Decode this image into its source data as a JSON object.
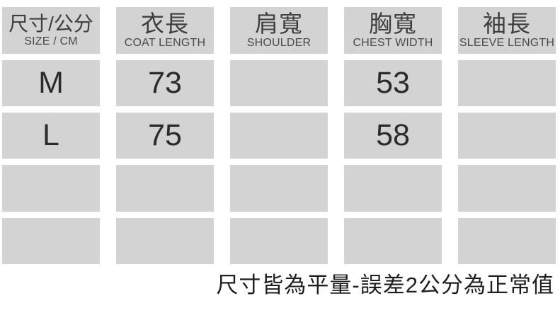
{
  "chart_data": {
    "type": "table",
    "columns": [
      {
        "zh": "尺寸/公分",
        "en": "SIZE / CM"
      },
      {
        "zh": "衣長",
        "en": "COAT LENGTH"
      },
      {
        "zh": "肩寬",
        "en": "SHOULDER"
      },
      {
        "zh": "胸寬",
        "en": "CHEST WIDTH"
      },
      {
        "zh": "袖長",
        "en": "SLEEVE LENGTH"
      }
    ],
    "rows": [
      [
        "M",
        "73",
        "",
        "53",
        ""
      ],
      [
        "L",
        "75",
        "",
        "58",
        ""
      ],
      [
        "",
        "",
        "",
        "",
        ""
      ],
      [
        "",
        "",
        "",
        "",
        ""
      ]
    ],
    "footnote": "尺寸皆為平量-誤差2公分為正常值"
  },
  "colors": {
    "cell_bg": "#d3d3d3",
    "header_text": "#3f3f3f",
    "subheader_text": "#4a4a4a",
    "value_text": "#2b2b2b",
    "footnote_text": "#1e1e1e",
    "background": "#ffffff"
  }
}
